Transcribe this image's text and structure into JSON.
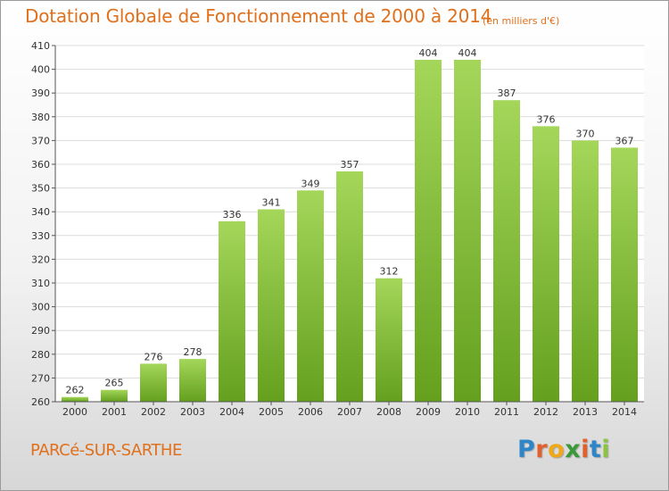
{
  "header": {
    "title": "Dotation Globale de Fonctionnement de 2000 à 2014",
    "unit_note": "(en milliers d'€)"
  },
  "footer": {
    "commune": "PARCé-SUR-SARTHE",
    "logo_letters": [
      {
        "char": "P",
        "color": "#2e86c8"
      },
      {
        "char": "r",
        "color": "#e2602b"
      },
      {
        "char": "o",
        "color": "#f0a818"
      },
      {
        "char": "x",
        "color": "#3a9a3a"
      },
      {
        "char": "i",
        "color": "#e2602b"
      },
      {
        "char": "t",
        "color": "#2e86c8"
      },
      {
        "char": "i",
        "color": "#8bc43f"
      }
    ]
  },
  "colors": {
    "title": "#e0701c",
    "bar_light": "#a4d65a",
    "bar_dark": "#64a01e",
    "grid": "#dcdcdc"
  },
  "chart_data": {
    "type": "bar",
    "title": "Dotation Globale de Fonctionnement de 2000 à 2014",
    "subtitle": "(en milliers d'€)",
    "xlabel": "",
    "ylabel": "",
    "categories": [
      "2000",
      "2001",
      "2002",
      "2003",
      "2004",
      "2005",
      "2006",
      "2007",
      "2008",
      "2009",
      "2010",
      "2011",
      "2012",
      "2013",
      "2014"
    ],
    "values": [
      262,
      265,
      276,
      278,
      336,
      341,
      349,
      357,
      312,
      404,
      404,
      387,
      376,
      370,
      367
    ],
    "ylim": [
      260,
      410
    ],
    "yticks": [
      260,
      270,
      280,
      290,
      300,
      310,
      320,
      330,
      340,
      350,
      360,
      370,
      380,
      390,
      400,
      410
    ],
    "grid": true,
    "legend": "none"
  }
}
